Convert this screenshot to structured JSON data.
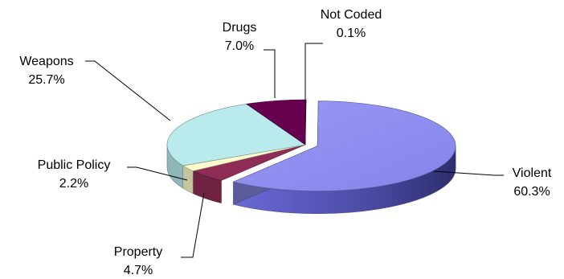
{
  "chart_data": {
    "type": "pie",
    "title": "",
    "categories": [
      "Not Coded",
      "Violent",
      "Property",
      "Public Policy",
      "Weapons",
      "Drugs"
    ],
    "values": [
      0.1,
      60.3,
      4.7,
      2.2,
      25.7,
      7.0
    ],
    "value_labels": [
      "0.1%",
      "60.3%",
      "4.7%",
      "2.2%",
      "25.7%",
      "7.0%"
    ],
    "colors": [
      "#1a1a6e",
      "#8e8ef0",
      "#8f2c55",
      "#fbfbcc",
      "#b9ebec",
      "#66004f"
    ],
    "legend": "none",
    "style": "3d-exploded-pie"
  }
}
